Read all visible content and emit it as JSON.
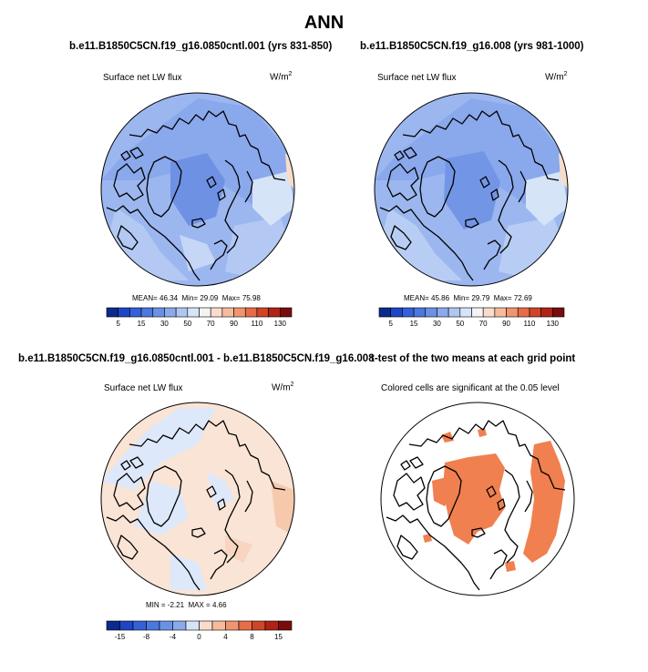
{
  "figure": {
    "title": "ANN"
  },
  "panels": [
    {
      "title": "b.e11.B1850C5CN.f19_g16.0850cntl.001 (yrs 831-850)",
      "left_label": "Surface net LW flux",
      "units": "W/m",
      "units_sup": "2",
      "stats": {
        "mean_label": "MEAN=",
        "mean": "46.34",
        "min_label": "Min=",
        "min": "29.09",
        "max_label": "Max=",
        "max": "75.98"
      }
    },
    {
      "title": "b.e11.B1850C5CN.f19_g16.008 (yrs 981-1000)",
      "left_label": "Surface net LW flux",
      "units": "W/m",
      "units_sup": "2",
      "stats": {
        "mean_label": "MEAN=",
        "mean": "45.86",
        "min_label": "Min=",
        "min": "29.79",
        "max_label": "Max=",
        "max": "72.69"
      }
    },
    {
      "title": "b.e11.B1850C5CN.f19_g16.0850cntl.001 - b.e11.B1850C5CN.f19_g16.008",
      "left_label": "Surface net LW flux",
      "units": "W/m",
      "units_sup": "2",
      "stats": {
        "min_label": "MIN =",
        "min": "-2.21",
        "max_label": "MAX =",
        "max": "4.66"
      }
    },
    {
      "title": "t-test of the two means at each grid point",
      "left_label": "Colored cells are significant at the 0.05 level"
    }
  ],
  "chart_data": [
    {
      "type": "heatmap",
      "projection": "north-polar-stereographic",
      "variable": "Surface net LW flux",
      "units": "W/m2",
      "mean": 46.34,
      "min": 29.09,
      "max": 75.98,
      "colorbar": {
        "levels": [
          5,
          10,
          15,
          20,
          30,
          40,
          50,
          60,
          70,
          80,
          90,
          100,
          110,
          120,
          130
        ],
        "tick_labels": [
          "5",
          "15",
          "30",
          "50",
          "70",
          "90",
          "110",
          "130"
        ],
        "colors": [
          "#0a2a8c",
          "#1d45c4",
          "#3561d8",
          "#4a78e0",
          "#6b91e6",
          "#8ca9ec",
          "#b0c6f2",
          "#d6e4f8",
          "#f4f4f4",
          "#f9dccb",
          "#f6bb9c",
          "#f0956f",
          "#e66d48",
          "#d04428",
          "#b02215",
          "#7a0c0c"
        ]
      }
    },
    {
      "type": "heatmap",
      "projection": "north-polar-stereographic",
      "variable": "Surface net LW flux",
      "units": "W/m2",
      "mean": 45.86,
      "min": 29.79,
      "max": 72.69,
      "colorbar": {
        "levels": [
          5,
          10,
          15,
          20,
          30,
          40,
          50,
          60,
          70,
          80,
          90,
          100,
          110,
          120,
          130
        ],
        "tick_labels": [
          "5",
          "15",
          "30",
          "50",
          "70",
          "90",
          "110",
          "130"
        ],
        "colors": [
          "#0a2a8c",
          "#1d45c4",
          "#3561d8",
          "#4a78e0",
          "#6b91e6",
          "#8ca9ec",
          "#b0c6f2",
          "#d6e4f8",
          "#f4f4f4",
          "#f9dccb",
          "#f6bb9c",
          "#f0956f",
          "#e66d48",
          "#d04428",
          "#b02215",
          "#7a0c0c"
        ]
      }
    },
    {
      "type": "heatmap",
      "projection": "north-polar-stereographic",
      "variable": "Surface net LW flux difference",
      "units": "W/m2",
      "min": -2.21,
      "max": 4.66,
      "colorbar": {
        "levels": [
          -15,
          -12,
          -8,
          -6,
          -4,
          -2,
          0,
          2,
          4,
          6,
          8,
          12,
          15
        ],
        "tick_labels": [
          "-15",
          "-8",
          "-4",
          "0",
          "4",
          "8",
          "15"
        ],
        "colors": [
          "#0a2a8c",
          "#1d45c4",
          "#3561d8",
          "#4a78e0",
          "#6b91e6",
          "#8ca9ec",
          "#d6e4f8",
          "#f9dccb",
          "#f6bb9c",
          "#f0956f",
          "#e66d48",
          "#d04428",
          "#b02215",
          "#7a0c0c"
        ]
      }
    },
    {
      "type": "heatmap",
      "projection": "north-polar-stereographic",
      "variable": "t-test significance mask",
      "significance_level": 0.05,
      "significant_color": "#f08050"
    }
  ],
  "colors": {
    "ocean_blue_light": "#b8cdf4",
    "ocean_blue_mid": "#9cb7ef",
    "ocean_blue_deep": "#7b9be6",
    "diff_warm": "#f9dccb",
    "diff_cool": "#d6e4f8",
    "significant": "#f08050",
    "coast": "#000000"
  }
}
